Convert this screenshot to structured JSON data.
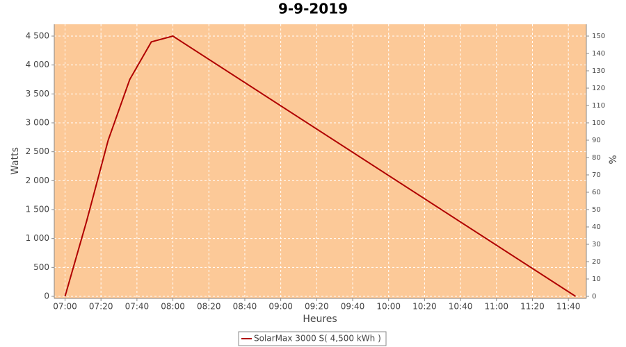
{
  "chart_data": {
    "type": "line",
    "title": "9-9-2019",
    "x_label": "Heures",
    "y_label": "Watts",
    "y2_label": "%",
    "x": [
      "07:00",
      "07:12",
      "07:24",
      "07:36",
      "07:48",
      "08:00",
      "11:44"
    ],
    "series": [
      {
        "name": "SolarMax 3000 S( 4,500 kWh )",
        "color": "#b00000",
        "values": [
          0,
          1300,
          2700,
          3750,
          4400,
          4500,
          0
        ]
      }
    ],
    "xlim": [
      "06:54",
      "11:50"
    ],
    "xticks": [
      "07:00",
      "07:20",
      "07:40",
      "08:00",
      "08:20",
      "08:40",
      "09:00",
      "09:20",
      "09:40",
      "10:00",
      "10:20",
      "10:40",
      "11:00",
      "11:20",
      "11:40"
    ],
    "ylim": [
      -36,
      4704
    ],
    "yticks": [
      0,
      500,
      {
        "value": 1000,
        "label": "1 000"
      },
      {
        "value": 1500,
        "label": "1 500"
      },
      {
        "value": 2000,
        "label": "2 000"
      },
      {
        "value": 2500,
        "label": "2 500"
      },
      {
        "value": 3000,
        "label": "3 000"
      },
      {
        "value": 3500,
        "label": "3 500"
      },
      {
        "value": 4000,
        "label": "4 000"
      },
      {
        "value": 4500,
        "label": "4 500"
      }
    ],
    "y2lim": [
      -1.2,
      156.8
    ],
    "y2ticks": [
      0,
      10,
      20,
      30,
      40,
      50,
      60,
      70,
      80,
      90,
      100,
      110,
      120,
      130,
      140,
      150
    ],
    "plot_background": "#fcc998",
    "grid": true
  }
}
